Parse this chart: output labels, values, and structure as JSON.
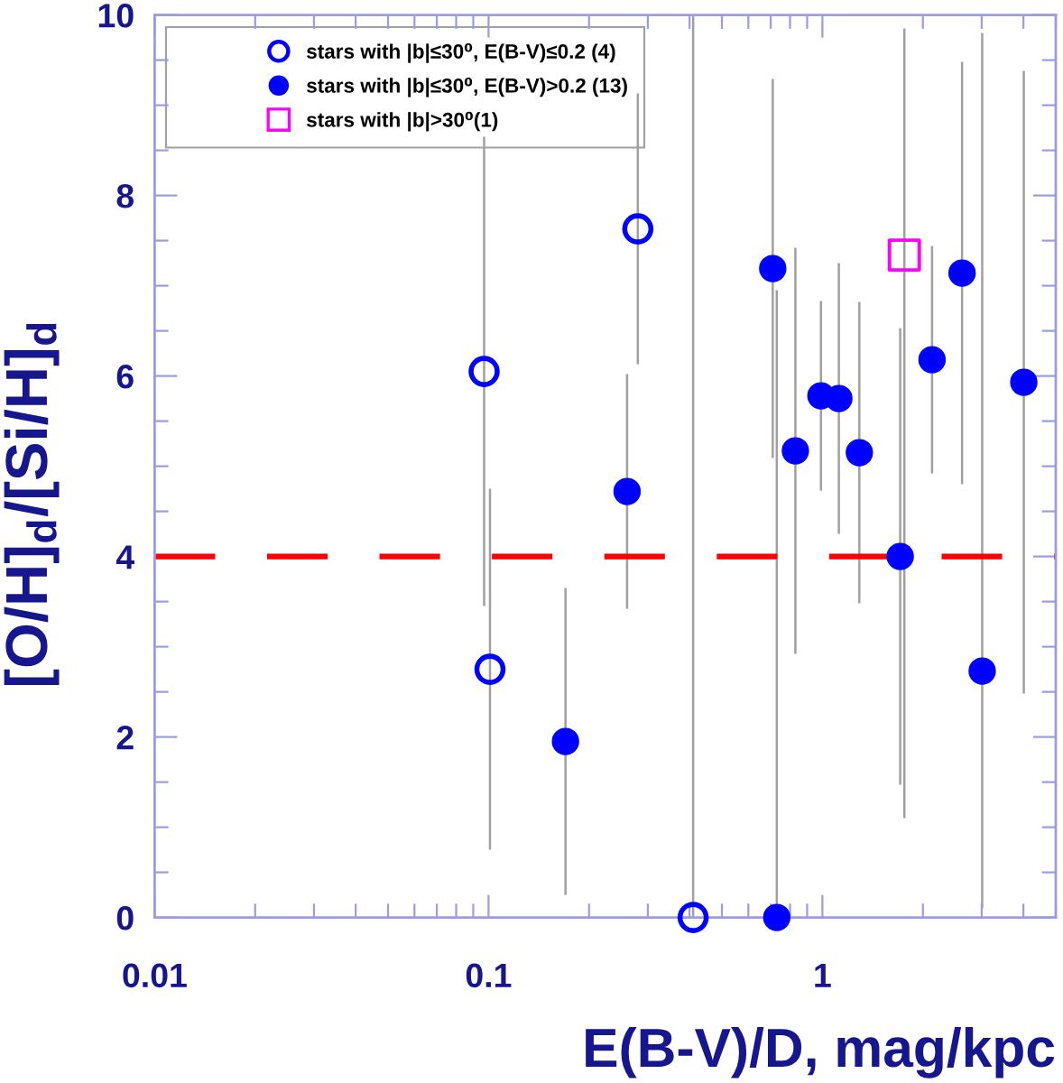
{
  "chart_data": {
    "type": "scatter",
    "xlabel": "E(B-V)/D, mag/kpc",
    "ylabel": "[O/H]$_{d}$/[Si/H]$_{d}$",
    "log": "x",
    "xlim": [
      0.01,
      5
    ],
    "xticks": [
      0.01,
      0.1,
      1
    ],
    "ylim": [
      0,
      10
    ],
    "yticks": [
      0,
      2,
      4,
      6,
      8,
      10
    ],
    "grid": false,
    "legend": "top left",
    "ref_lines": [
      {
        "axis": "y",
        "value": 4,
        "color": "#ff0000",
        "line_style": "dashed"
      }
    ],
    "series": [
      {
        "name": "stars with |b|≤30⁰, E(B-V)≤0.2 (4)",
        "color": "#0000ff",
        "marker": "circle-open",
        "x": [
          0.097,
          0.101,
          0.28,
          0.41
        ],
        "values": [
          6.05,
          2.75,
          7.63,
          0
        ],
        "errors": [
          2.6,
          2.0,
          1.5,
          [
            0,
            10
          ]
        ]
      },
      {
        "name": "stars with |b|≤30⁰, E(B-V)>0.2 (13)",
        "color": "#0000ff",
        "marker": "circle",
        "x": [
          0.17,
          0.26,
          0.71,
          0.73,
          0.83,
          0.99,
          1.12,
          1.29,
          1.71,
          2.13,
          2.62,
          3.01,
          4.01
        ],
        "values": [
          1.95,
          4.72,
          7.19,
          0,
          5.17,
          5.78,
          5.75,
          5.15,
          4.0,
          6.18,
          7.14,
          2.73,
          5.93
        ],
        "errors": [
          1.7,
          1.3,
          2.1,
          [
            0,
            6.95
          ],
          2.25,
          1.05,
          1.5,
          1.67,
          2.53,
          1.26,
          2.34,
          [
            0.1,
            9.8
          ],
          3.45
        ]
      },
      {
        "name": "stars with |b|>30⁰(1)",
        "color": "#ff00ff",
        "marker": "square-open",
        "x": [
          1.76
        ],
        "values": [
          7.34
        ],
        "errors": [
          [
            1.1,
            9.85
          ]
        ]
      }
    ]
  }
}
